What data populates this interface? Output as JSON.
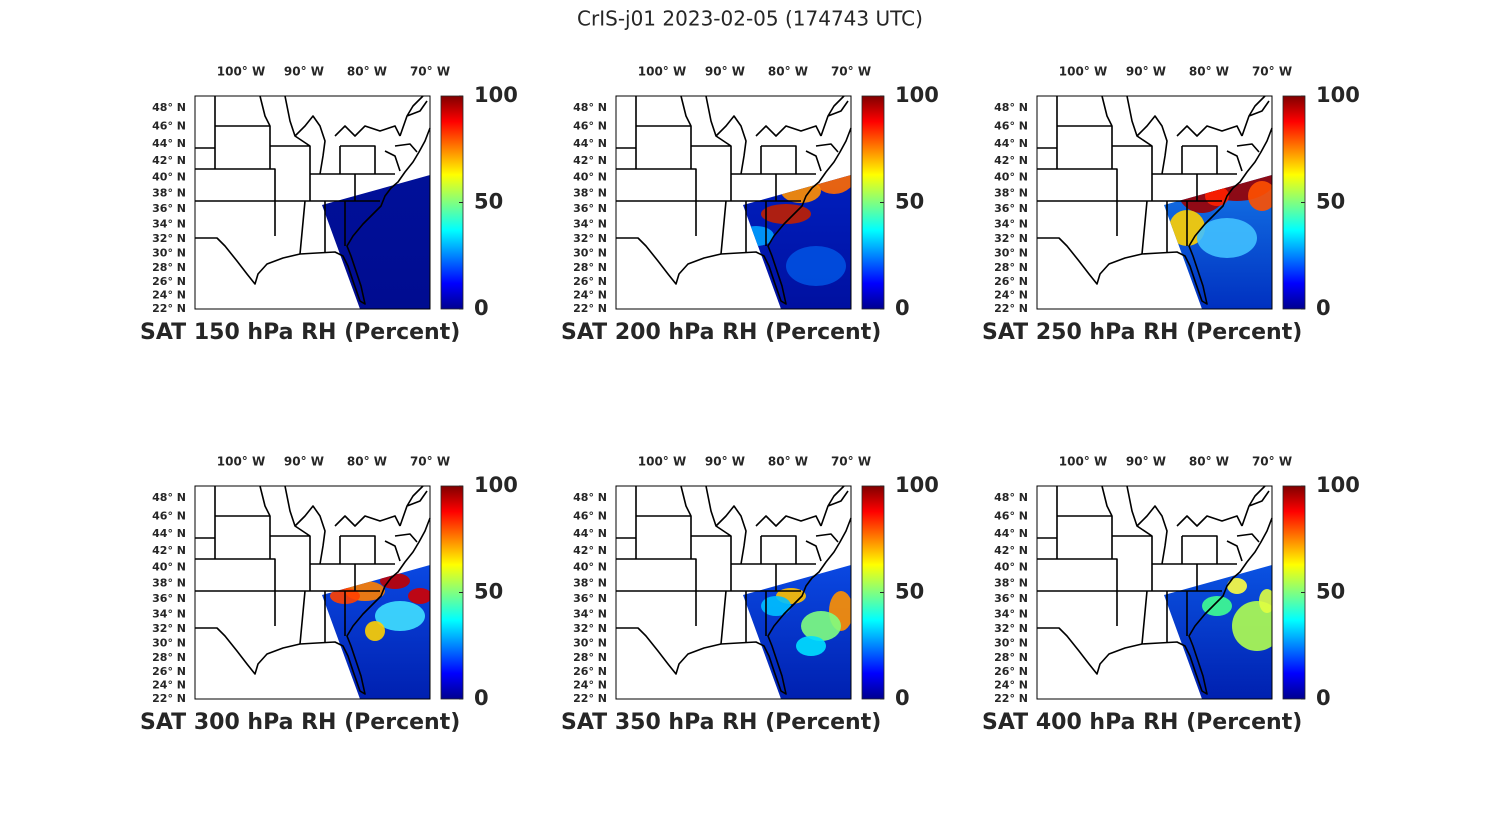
{
  "title": "CrIS-j01 2023-02-05 (174743 UTC)",
  "panels": [
    {
      "title": "SAT 150 hPa RH (Percent)"
    },
    {
      "title": "SAT 200 hPa RH (Percent)"
    },
    {
      "title": "SAT 250 hPa RH (Percent)"
    },
    {
      "title": "SAT 300 hPa RH (Percent)"
    },
    {
      "title": "SAT 350 hPa RH (Percent)"
    },
    {
      "title": "SAT 400 hPa RH (Percent)"
    }
  ],
  "colorbar": {
    "ylim": [
      0,
      100
    ],
    "yticks": [
      0,
      50,
      100
    ]
  },
  "lonlim": [
    -107.3,
    -70
  ],
  "latlim": [
    22,
    49.3
  ],
  "lon_ticks": [
    {
      "value": -100,
      "label": "100° W"
    },
    {
      "value": -90,
      "label": "90° W"
    },
    {
      "value": -80,
      "label": "80° W"
    },
    {
      "value": -70,
      "label": "70° W"
    }
  ],
  "lat_ticks": [
    {
      "value": 48,
      "label": "48° N"
    },
    {
      "value": 46,
      "label": "46° N"
    },
    {
      "value": 44,
      "label": "44° N"
    },
    {
      "value": 42,
      "label": "42° N"
    },
    {
      "value": 40,
      "label": "40° N"
    },
    {
      "value": 38,
      "label": "38° N"
    },
    {
      "value": 36,
      "label": "36° N"
    },
    {
      "value": 34,
      "label": "34° N"
    },
    {
      "value": 32,
      "label": "32° N"
    },
    {
      "value": 30,
      "label": "30° N"
    },
    {
      "value": 28,
      "label": "28° N"
    },
    {
      "value": 26,
      "label": "26° N"
    },
    {
      "value": 24,
      "label": "24° N"
    },
    {
      "value": 22,
      "label": "22° N"
    }
  ]
}
